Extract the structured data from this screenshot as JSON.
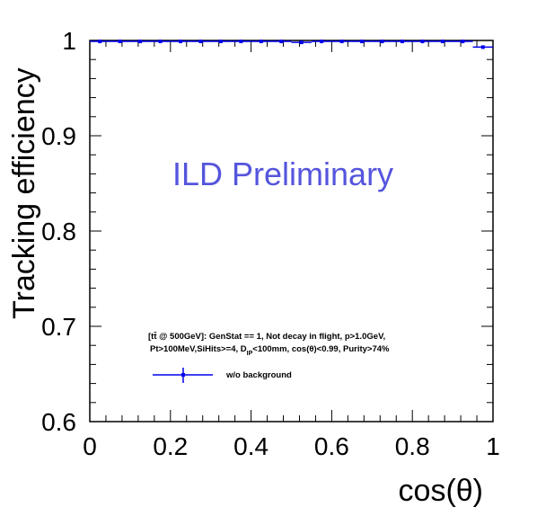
{
  "chart_data": {
    "type": "scatter",
    "xlabel": "cos(θ)",
    "ylabel": "Tracking efficiency",
    "xlim": [
      0,
      1
    ],
    "ylim": [
      0.6,
      1.0
    ],
    "grid": false,
    "x_tick_labels": [
      "0",
      "0.2",
      "0.4",
      "0.6",
      "0.8",
      "1"
    ],
    "y_tick_labels": [
      "0.6",
      "0.7",
      "0.8",
      "0.9",
      "1"
    ],
    "watermark": "ILD Preliminary",
    "cuts_line1": "[tt̄ @ 500GeV]: GenStat == 1, Not decay in flight, p>1.0GeV,",
    "cuts_line2_a": "Pt>100MeV,SiHits>=4, D",
    "cuts_line2_sub": "IP",
    "cuts_line2_b": "<100mm, cos(θ)<0.99, Purity>74%",
    "legend_label": "w/o background",
    "color": "#0000ee",
    "series": [
      {
        "name": "w/o background",
        "bin_edges": [
          0,
          0.05,
          0.1,
          0.15,
          0.2,
          0.25,
          0.3,
          0.35,
          0.4,
          0.45,
          0.5,
          0.55,
          0.6,
          0.65,
          0.7,
          0.75,
          0.8,
          0.85,
          0.9,
          0.95,
          1.0
        ],
        "x": [
          0.025,
          0.075,
          0.125,
          0.175,
          0.225,
          0.275,
          0.325,
          0.375,
          0.425,
          0.475,
          0.525,
          0.575,
          0.625,
          0.675,
          0.725,
          0.775,
          0.825,
          0.875,
          0.925,
          0.975
        ],
        "y": [
          0.999,
          0.999,
          0.999,
          0.999,
          0.999,
          0.999,
          0.999,
          0.999,
          0.999,
          0.999,
          0.998,
          0.999,
          0.999,
          0.999,
          0.999,
          0.999,
          0.999,
          0.999,
          0.999,
          0.993
        ]
      }
    ]
  }
}
